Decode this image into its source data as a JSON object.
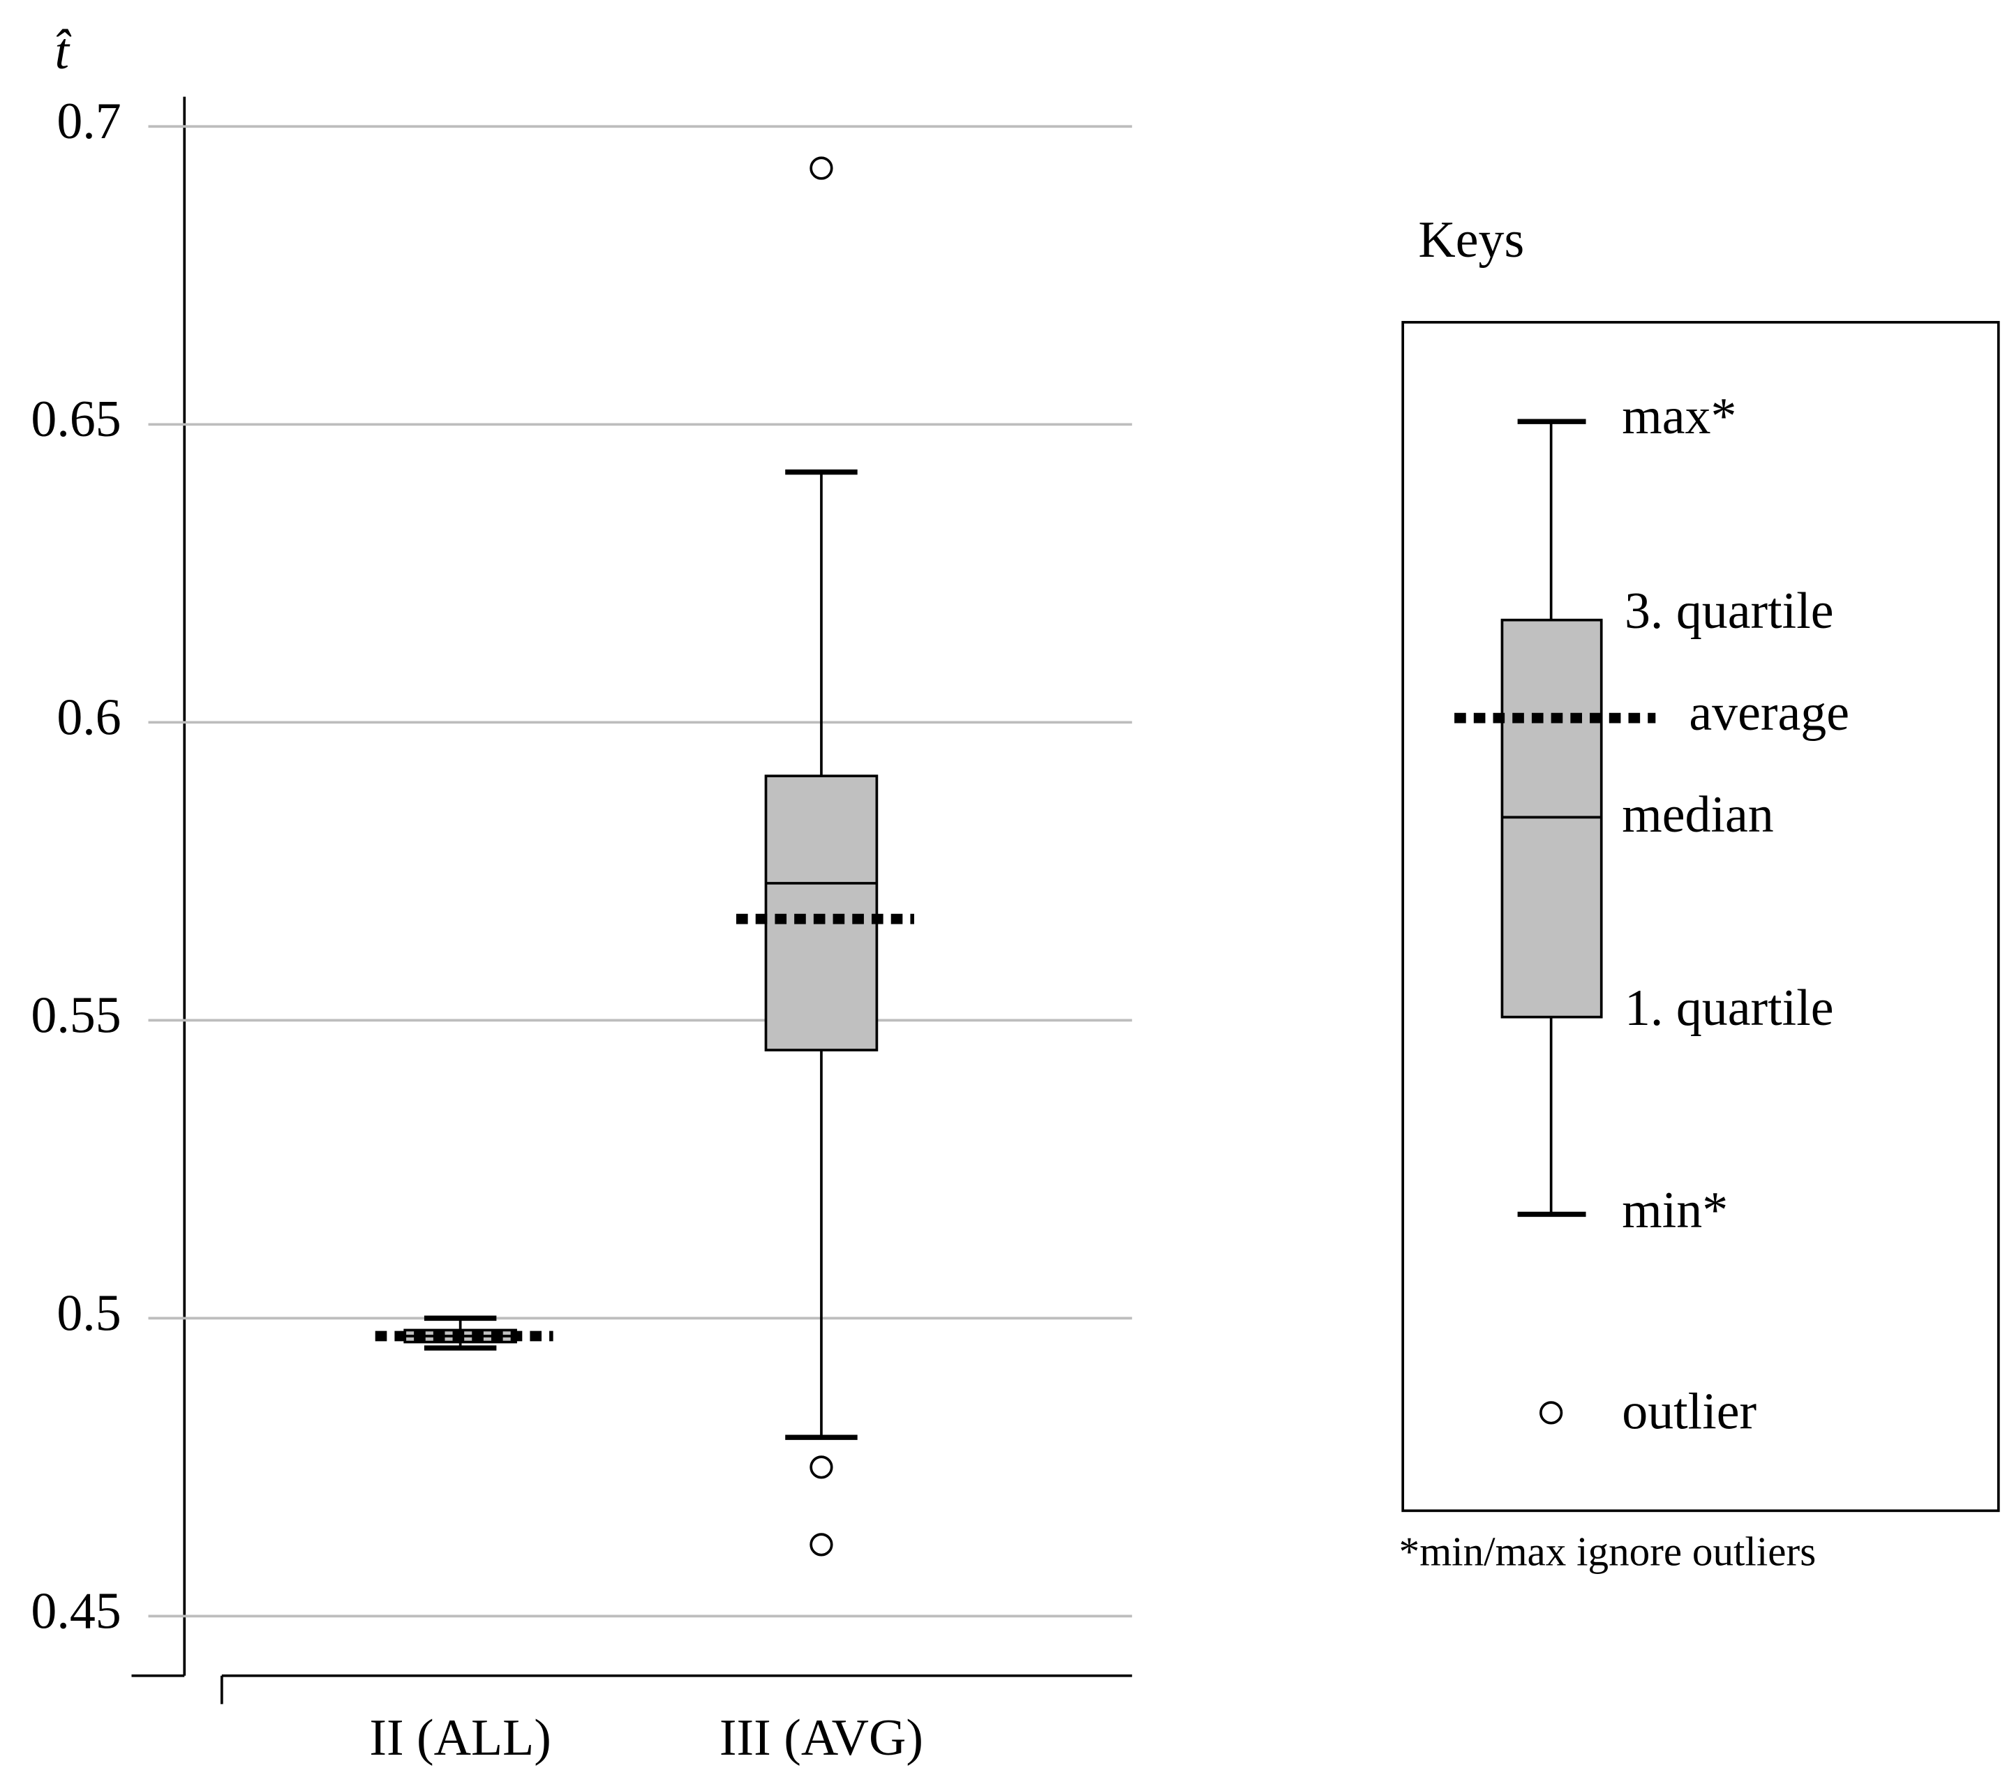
{
  "chart_data": {
    "type": "box",
    "y_label": "t̂",
    "categories": [
      "II (ALL)",
      "III (AVG)"
    ],
    "boxes": [
      {
        "min": 0.495,
        "q1": 0.496,
        "median": 0.497,
        "q3": 0.498,
        "max": 0.5,
        "mean": 0.497,
        "outliers": []
      },
      {
        "min": 0.48,
        "q1": 0.545,
        "median": 0.573,
        "q3": 0.591,
        "max": 0.642,
        "mean": 0.567,
        "outliers": [
          0.693,
          0.475,
          0.462
        ]
      }
    ],
    "ylim": [
      0.44,
      0.705
    ],
    "yticks": [
      0.45,
      0.5,
      0.55,
      0.6,
      0.65,
      0.7
    ],
    "grid": true,
    "box_color": "#c0c0c0",
    "legend": {
      "title": "Keys",
      "max": "max*",
      "q3": "3. quartile",
      "mean": "average",
      "median": "median",
      "q1": "1. quartile",
      "min": "min*",
      "outlier": "outlier",
      "note": "*min/max ignore outliers"
    }
  }
}
